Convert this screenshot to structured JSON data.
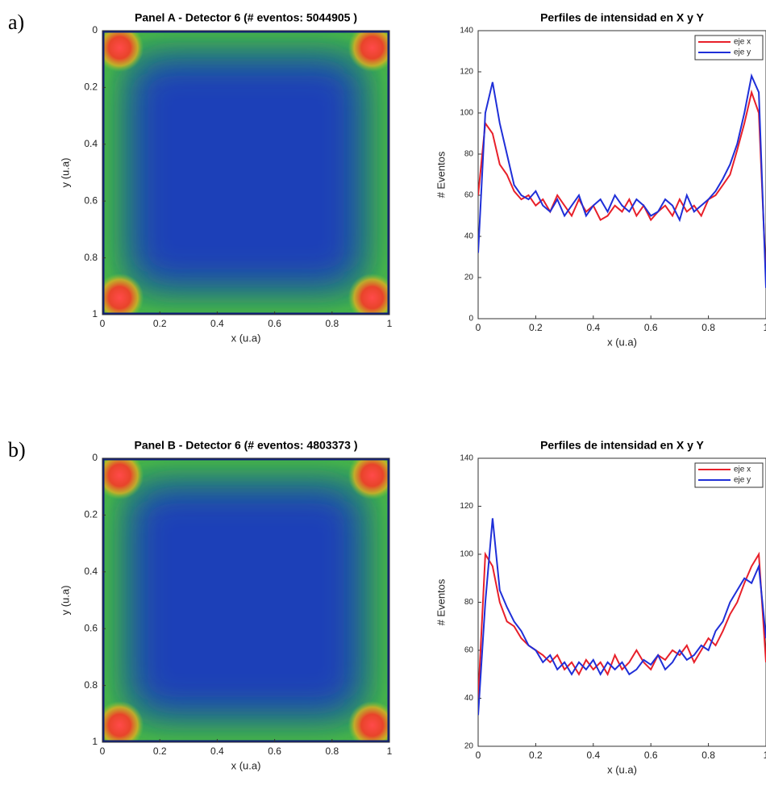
{
  "chart_data": [
    {
      "type": "heatmap",
      "panel_label": "a)",
      "title": "Panel A - Detector 6 (# eventos: 5044905 )",
      "x_label": "x (u.a)",
      "y_label": "y (u.a)",
      "xlim": [
        0,
        1
      ],
      "ylim": [
        1,
        0
      ],
      "xticks": [
        0,
        0.2,
        0.4,
        0.6,
        0.8,
        1
      ],
      "yticks": [
        0,
        0.2,
        0.4,
        0.6,
        0.8,
        1
      ]
    },
    {
      "type": "line",
      "title": "Perfiles de intensidad en X y Y",
      "x_label": "x (u.a)",
      "y_label": "# Eventos",
      "xlim": [
        0,
        1
      ],
      "ylim": [
        0,
        140
      ],
      "xticks": [
        0,
        0.2,
        0.4,
        0.6,
        0.8,
        1
      ],
      "yticks": [
        0,
        20,
        40,
        60,
        80,
        100,
        120,
        140
      ],
      "legend": "upper right",
      "x": [
        0,
        0.025,
        0.05,
        0.075,
        0.1,
        0.125,
        0.15,
        0.175,
        0.2,
        0.225,
        0.25,
        0.275,
        0.3,
        0.325,
        0.35,
        0.375,
        0.4,
        0.425,
        0.45,
        0.475,
        0.5,
        0.525,
        0.55,
        0.575,
        0.6,
        0.625,
        0.65,
        0.675,
        0.7,
        0.725,
        0.75,
        0.775,
        0.8,
        0.825,
        0.85,
        0.875,
        0.9,
        0.925,
        0.95,
        0.975,
        1
      ],
      "series": [
        {
          "name": "eje x",
          "color": "#e8202a",
          "values": [
            60,
            95,
            90,
            75,
            70,
            62,
            58,
            60,
            55,
            58,
            52,
            60,
            55,
            50,
            58,
            52,
            55,
            48,
            50,
            55,
            52,
            58,
            50,
            55,
            48,
            52,
            55,
            50,
            58,
            52,
            55,
            50,
            58,
            60,
            65,
            70,
            82,
            95,
            110,
            100,
            20
          ]
        },
        {
          "name": "eje y",
          "color": "#1f2fd8",
          "values": [
            32,
            100,
            115,
            95,
            80,
            65,
            60,
            58,
            62,
            55,
            52,
            58,
            50,
            55,
            60,
            50,
            55,
            58,
            52,
            60,
            55,
            52,
            58,
            55,
            50,
            52,
            58,
            55,
            48,
            60,
            52,
            55,
            58,
            62,
            68,
            75,
            85,
            100,
            118,
            110,
            15
          ]
        }
      ]
    },
    {
      "type": "heatmap",
      "panel_label": "b)",
      "title": "Panel B - Detector 6 (# eventos: 4803373 )",
      "x_label": "x (u.a)",
      "y_label": "y (u.a)",
      "xlim": [
        0,
        1
      ],
      "ylim": [
        1,
        0
      ],
      "xticks": [
        0,
        0.2,
        0.4,
        0.6,
        0.8,
        1
      ],
      "yticks": [
        0,
        0.2,
        0.4,
        0.6,
        0.8,
        1
      ]
    },
    {
      "type": "line",
      "title": "Perfiles de intensidad en X y Y",
      "x_label": "x (u.a)",
      "y_label": "# Eventos",
      "xlim": [
        0,
        1
      ],
      "ylim": [
        20,
        140
      ],
      "xticks": [
        0,
        0.2,
        0.4,
        0.6,
        0.8,
        1
      ],
      "yticks": [
        20,
        40,
        60,
        80,
        100,
        120,
        140
      ],
      "legend": "upper right",
      "x": [
        0,
        0.025,
        0.05,
        0.075,
        0.1,
        0.125,
        0.15,
        0.175,
        0.2,
        0.225,
        0.25,
        0.275,
        0.3,
        0.325,
        0.35,
        0.375,
        0.4,
        0.425,
        0.45,
        0.475,
        0.5,
        0.525,
        0.55,
        0.575,
        0.6,
        0.625,
        0.65,
        0.675,
        0.7,
        0.725,
        0.75,
        0.775,
        0.8,
        0.825,
        0.85,
        0.875,
        0.9,
        0.925,
        0.95,
        0.975,
        1
      ],
      "series": [
        {
          "name": "eje x",
          "color": "#e8202a",
          "values": [
            40,
            100,
            95,
            80,
            72,
            70,
            65,
            62,
            60,
            58,
            55,
            58,
            52,
            55,
            50,
            56,
            52,
            55,
            50,
            58,
            52,
            55,
            60,
            55,
            52,
            58,
            56,
            60,
            58,
            62,
            55,
            60,
            65,
            62,
            68,
            75,
            80,
            88,
            95,
            100,
            55
          ]
        },
        {
          "name": "eje y",
          "color": "#1f2fd8",
          "values": [
            33,
            80,
            115,
            85,
            78,
            72,
            68,
            62,
            60,
            55,
            58,
            52,
            55,
            50,
            55,
            52,
            56,
            50,
            55,
            52,
            55,
            50,
            52,
            56,
            54,
            58,
            52,
            55,
            60,
            56,
            58,
            62,
            60,
            68,
            72,
            80,
            85,
            90,
            88,
            95,
            65
          ]
        }
      ]
    }
  ]
}
